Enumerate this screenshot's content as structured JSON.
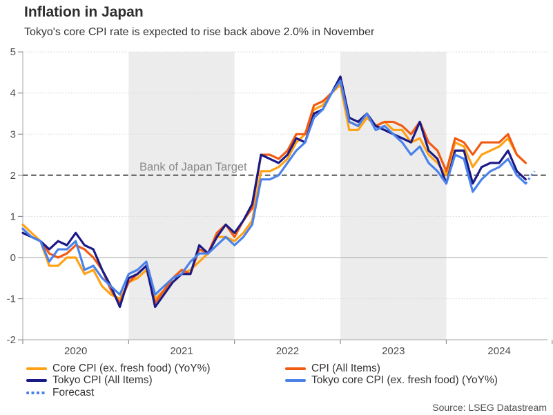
{
  "header": {
    "title": "Inflation in Japan",
    "subtitle": "Tokyo's core CPI rate is expected to rise back above 2.0% in November"
  },
  "source": "Source: LSEG Datastream",
  "colors": {
    "core_cpi": "#FFA114",
    "cpi_all_items": "#F15A13",
    "tokyo_cpi": "#1A1A87",
    "tokyo_core_cpi": "#4A82EA",
    "forecast": "#4A82EA",
    "year_band": "#ececec",
    "target_line": "#6f6f6f"
  },
  "chart_data": {
    "type": "line",
    "x_axis": {
      "start": "2020-01",
      "end_actual": "2024-10",
      "interval": "monthly"
    },
    "year_labels": [
      "2020",
      "2021",
      "2022",
      "2023",
      "2024"
    ],
    "shaded_year_bands": [
      2021,
      2023
    ],
    "ylim": [
      -2,
      5
    ],
    "yticks": [
      5,
      4,
      3,
      2,
      1,
      0,
      -1,
      -2
    ],
    "target_label": "Bank of Japan Target",
    "target_value": 2,
    "legend_position": "bottom",
    "series": [
      {
        "name": "Core CPI (ex. fresh food) (YoY%)",
        "color": "#FFA114",
        "values": [
          0.8,
          0.6,
          0.4,
          -0.2,
          -0.2,
          0.0,
          0.0,
          -0.4,
          -0.3,
          -0.7,
          -0.9,
          -1.0,
          -0.6,
          -0.5,
          -0.3,
          -1.0,
          -0.8,
          -0.6,
          -0.4,
          -0.3,
          -0.1,
          0.1,
          0.5,
          0.5,
          0.4,
          0.6,
          0.9,
          2.1,
          2.1,
          2.2,
          2.4,
          2.8,
          3.0,
          3.6,
          3.7,
          4.0,
          4.2,
          3.1,
          3.1,
          3.4,
          3.2,
          3.3,
          3.1,
          3.1,
          2.8,
          2.9,
          2.5,
          2.3,
          2.0,
          2.8,
          2.7,
          2.2,
          2.5,
          2.6,
          2.7,
          2.9,
          2.5,
          2.3
        ]
      },
      {
        "name": "CPI (All Items)",
        "color": "#F15A13",
        "values": [
          0.7,
          0.5,
          0.4,
          0.1,
          0.0,
          0.1,
          0.3,
          0.2,
          0.0,
          -0.3,
          -0.8,
          -1.1,
          -0.6,
          -0.4,
          -0.2,
          -1.1,
          -0.8,
          -0.5,
          -0.3,
          -0.4,
          0.2,
          0.1,
          0.6,
          0.8,
          0.5,
          0.9,
          1.2,
          2.5,
          2.5,
          2.4,
          2.6,
          3.0,
          3.0,
          3.7,
          3.8,
          4.0,
          4.3,
          3.3,
          3.2,
          3.5,
          3.2,
          3.3,
          3.3,
          3.2,
          3.0,
          3.3,
          2.8,
          2.6,
          2.1,
          2.9,
          2.8,
          2.5,
          2.8,
          2.8,
          2.8,
          3.0,
          2.5,
          2.3
        ]
      },
      {
        "name": "Tokyo CPI (All Items)",
        "color": "#1A1A87",
        "values": [
          0.6,
          0.5,
          0.4,
          0.2,
          0.4,
          0.3,
          0.6,
          0.3,
          0.2,
          -0.3,
          -0.7,
          -1.2,
          -0.5,
          -0.4,
          -0.2,
          -1.2,
          -0.9,
          -0.6,
          -0.4,
          -0.4,
          0.3,
          0.1,
          0.5,
          0.8,
          0.6,
          0.9,
          1.3,
          2.5,
          2.4,
          2.3,
          2.5,
          2.9,
          2.8,
          3.5,
          3.6,
          4.0,
          4.4,
          3.4,
          3.3,
          3.5,
          3.2,
          3.1,
          3.0,
          2.9,
          2.8,
          3.3,
          2.6,
          2.4,
          1.8,
          2.6,
          2.6,
          1.8,
          2.2,
          2.3,
          2.3,
          2.6,
          2.1,
          1.9
        ]
      },
      {
        "name": "Tokyo core CPI (ex. fresh food) (YoY%)",
        "color": "#4A82EA",
        "values": [
          0.7,
          0.5,
          0.4,
          -0.1,
          0.2,
          0.2,
          0.4,
          -0.3,
          -0.2,
          -0.5,
          -0.7,
          -0.9,
          -0.4,
          -0.3,
          -0.1,
          -0.9,
          -0.7,
          -0.5,
          -0.4,
          -0.1,
          0.1,
          0.1,
          0.3,
          0.5,
          0.3,
          0.5,
          0.8,
          1.9,
          1.9,
          2.0,
          2.3,
          2.6,
          2.8,
          3.4,
          3.6,
          4.0,
          4.3,
          3.3,
          3.2,
          3.5,
          3.1,
          3.2,
          3.0,
          2.8,
          2.5,
          2.7,
          2.3,
          2.1,
          1.8,
          2.5,
          2.4,
          1.6,
          1.9,
          2.1,
          2.2,
          2.4,
          2.0,
          1.8
        ]
      }
    ],
    "forecast": {
      "name": "Forecast",
      "color": "#4A82EA",
      "style": "dotted",
      "months": [
        "2024-10",
        "2024-11"
      ],
      "values": [
        1.8,
        2.1
      ]
    }
  }
}
